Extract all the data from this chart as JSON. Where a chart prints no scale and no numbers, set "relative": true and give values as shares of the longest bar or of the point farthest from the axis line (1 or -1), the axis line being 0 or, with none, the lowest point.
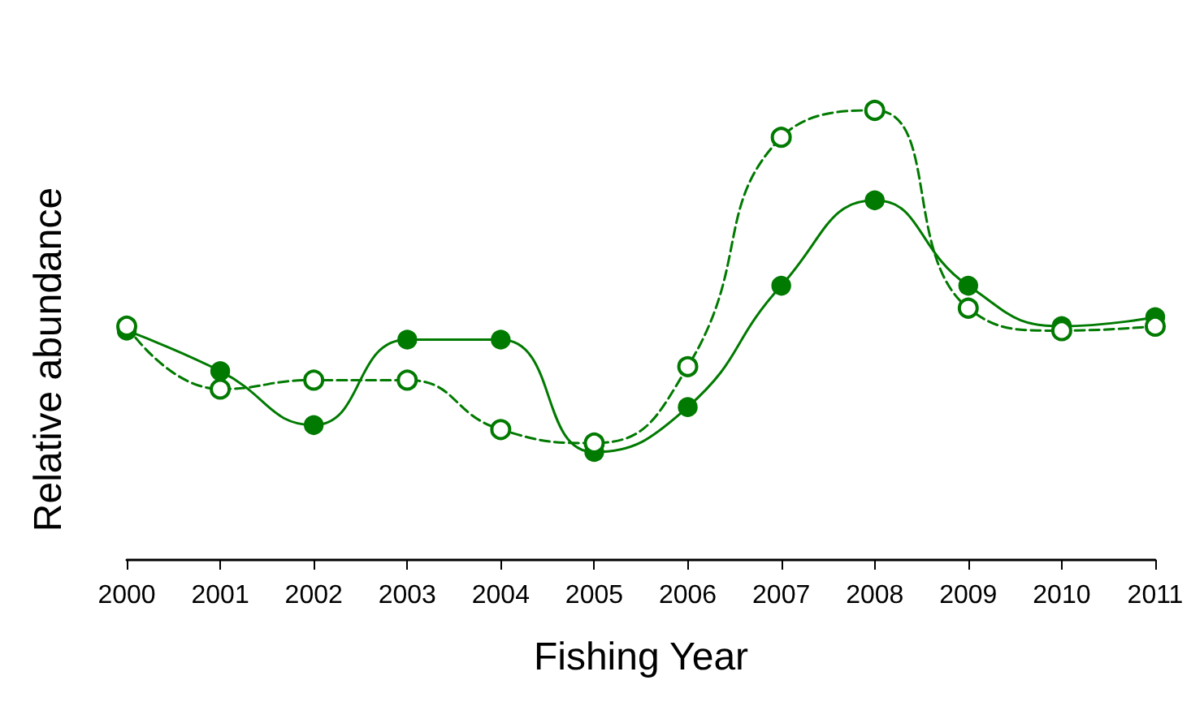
{
  "chart_data": {
    "type": "line",
    "relative": true,
    "xlabel": "Fishing Year",
    "ylabel": "Relative abundance",
    "categories": [
      "2000",
      "2001",
      "2002",
      "2003",
      "2004",
      "2005",
      "2006",
      "2007",
      "2008",
      "2009",
      "2010",
      "2011"
    ],
    "series": [
      {
        "color": "#007a00",
        "line_style": "solid",
        "values": [
          0.51,
          0.42,
          0.3,
          0.49,
          0.49,
          0.24,
          0.34,
          0.61,
          0.8,
          0.61,
          0.52,
          0.54
        ]
      },
      {
        "color": "#007a00",
        "line_style": "dashed",
        "values": [
          0.52,
          0.38,
          0.4,
          0.4,
          0.29,
          0.26,
          0.43,
          0.94,
          1,
          0.56,
          0.51,
          0.52
        ]
      }
    ],
    "marker": "circle",
    "grid": false
  }
}
